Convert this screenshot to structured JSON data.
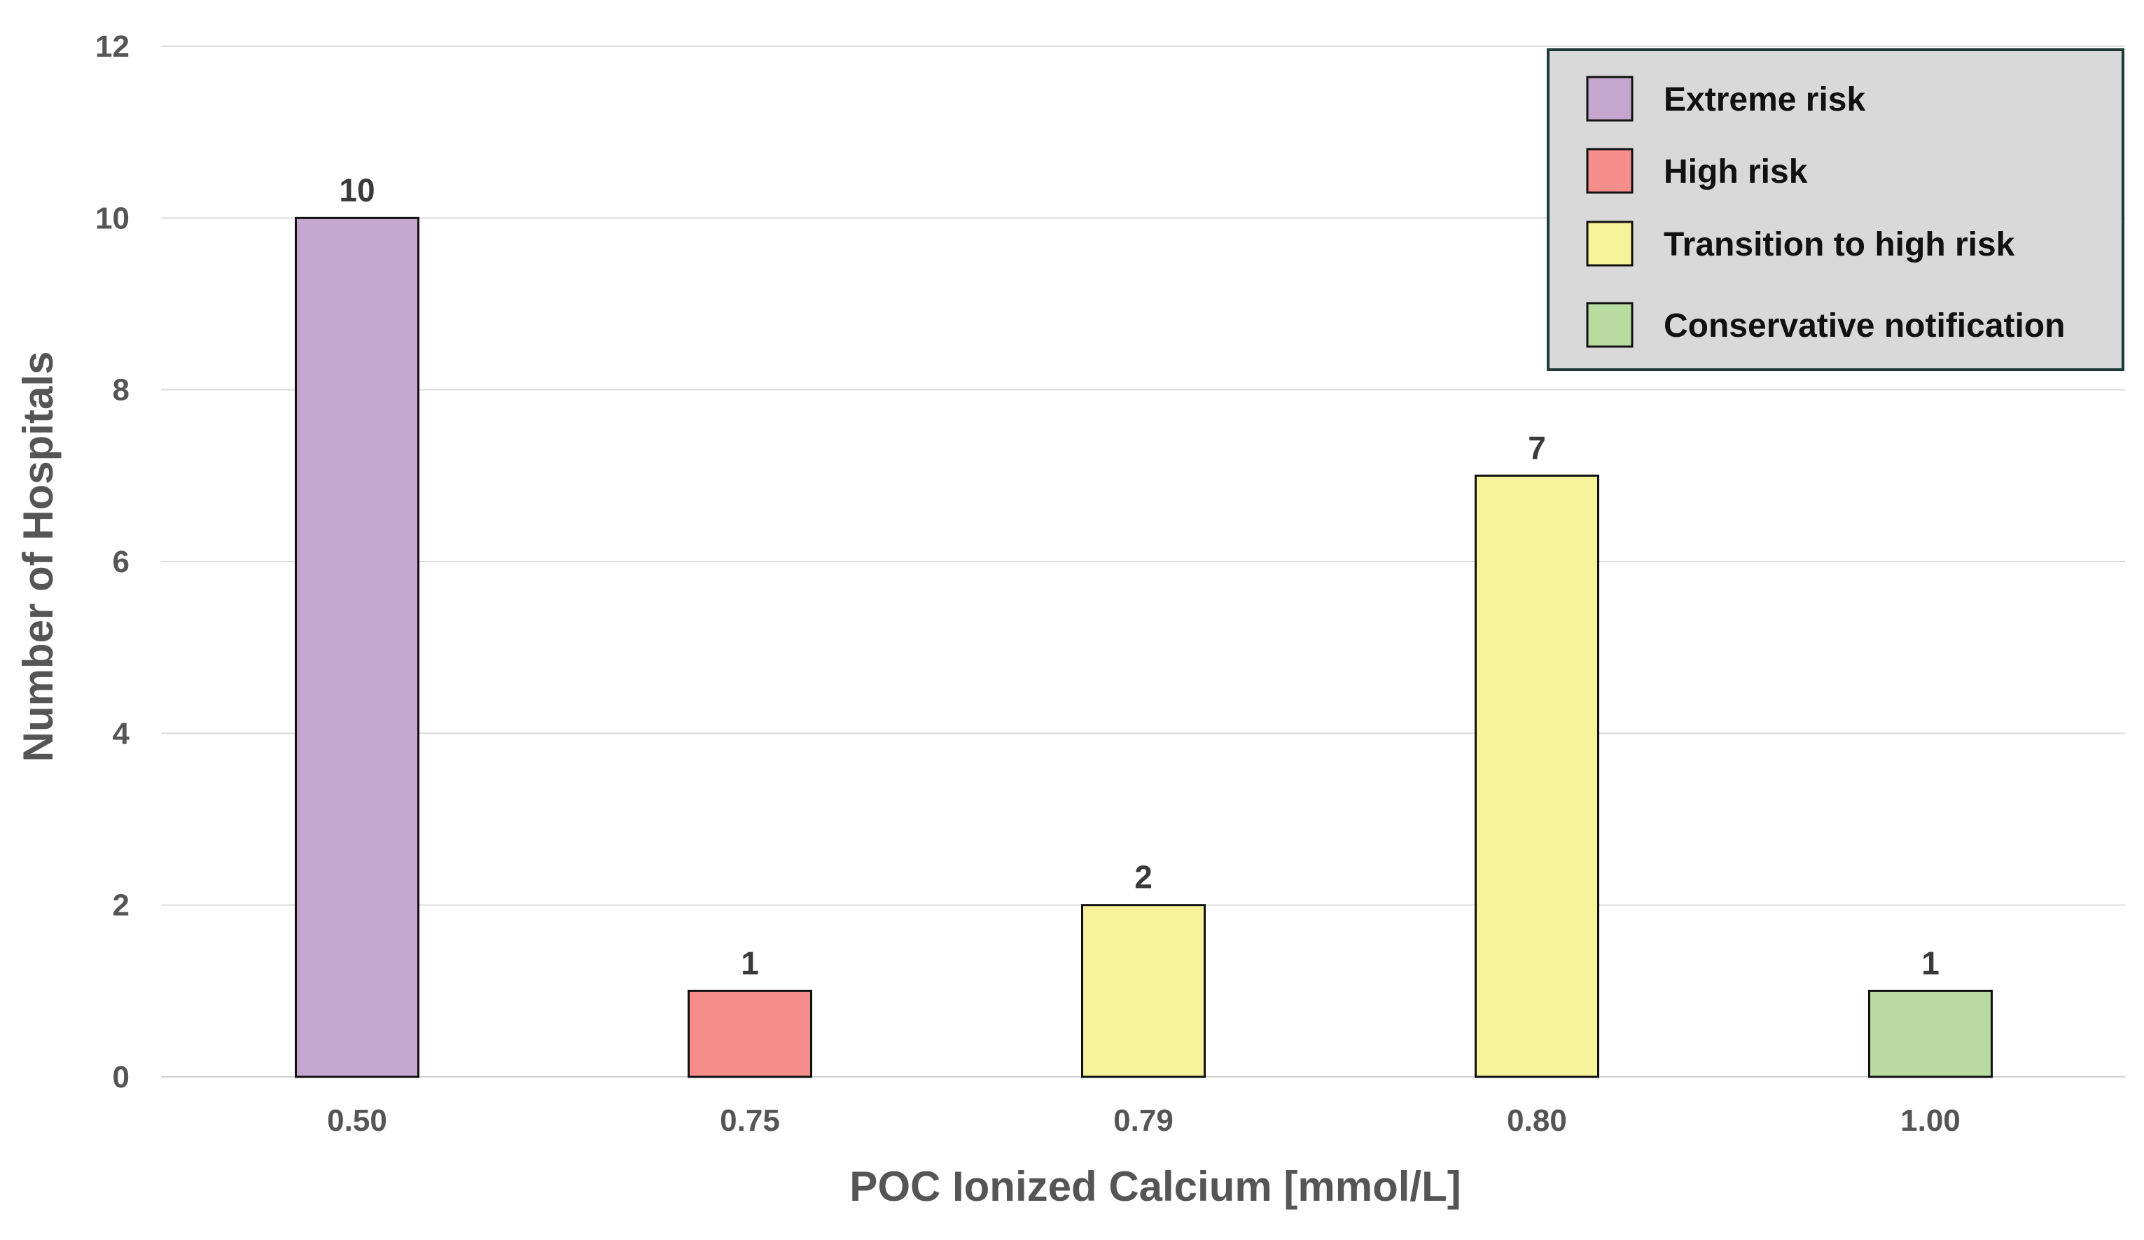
{
  "chart_data": {
    "type": "bar",
    "title": "",
    "xlabel": "POC Ionized Calcium [mmol/L]",
    "ylabel": "Number of Hospitals",
    "categories": [
      "0.50",
      "0.75",
      "0.79",
      "0.80",
      "1.00"
    ],
    "values": [
      10,
      1,
      2,
      7,
      1
    ],
    "bar_groups": [
      "Extreme risk",
      "High risk",
      "Transition to high risk",
      "Transition to high risk",
      "Conservative notification"
    ],
    "data_labels": [
      "10",
      "1",
      "2",
      "7",
      "1"
    ],
    "ylim": [
      0,
      12
    ],
    "yticks": [
      0,
      2,
      4,
      6,
      8,
      10,
      12
    ],
    "grid": true,
    "legend": {
      "placement": "top-right",
      "entries": [
        {
          "label": "Extreme risk",
          "color": "#c5a6cf"
        },
        {
          "label": "High risk",
          "color": "#f58d8b"
        },
        {
          "label": "Transition to high risk",
          "color": "#f7f39b"
        },
        {
          "label": "Conservative notification",
          "color": "#b8dba0"
        }
      ]
    }
  }
}
